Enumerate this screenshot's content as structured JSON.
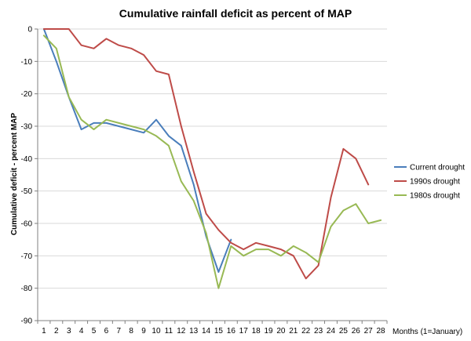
{
  "chart_data": {
    "type": "line",
    "title": "Cumulative rainfall deficit as percent of MAP",
    "xlabel": "Months  (1=January)",
    "ylabel": "Cumulative deficit - percent MAP",
    "ylim": [
      -90,
      0
    ],
    "yticks": [
      0,
      -10,
      -20,
      -30,
      -40,
      -50,
      -60,
      -70,
      -80,
      -90
    ],
    "x": [
      1,
      2,
      3,
      4,
      5,
      6,
      7,
      8,
      9,
      10,
      11,
      12,
      13,
      14,
      15,
      16,
      17,
      18,
      19,
      20,
      21,
      22,
      23,
      24,
      25,
      26,
      27,
      28
    ],
    "grid": true,
    "legend_position": "right",
    "series": [
      {
        "name": "Current drought",
        "color": "#4a7ebb",
        "values": [
          0,
          -10,
          -21,
          -31,
          -29,
          -29,
          -30,
          -31,
          -32,
          -28,
          -33,
          -36,
          -48,
          -64,
          -75,
          -65,
          null,
          null,
          null,
          null,
          null,
          null,
          null,
          null,
          null,
          null,
          null,
          null
        ]
      },
      {
        "name": "1990s drought",
        "color": "#be4b48",
        "values": [
          0,
          0,
          0,
          -5,
          -6,
          -3,
          -5,
          -6,
          -8,
          -13,
          -14,
          -30,
          -44,
          -57,
          -62,
          -66,
          -68,
          -66,
          -67,
          -68,
          -70,
          -77,
          -73,
          -52,
          -37,
          -40,
          -48,
          null
        ]
      },
      {
        "name": "1980s drought",
        "color": "#98b954",
        "values": [
          -2,
          -6,
          -21,
          -28,
          -31,
          -28,
          -29,
          -30,
          -31,
          -33,
          -36,
          -47,
          -53,
          -63,
          -80,
          -67,
          -70,
          -68,
          -68,
          -70,
          -67,
          -69,
          -72,
          -61,
          -56,
          -54,
          -60,
          -59
        ]
      }
    ]
  }
}
